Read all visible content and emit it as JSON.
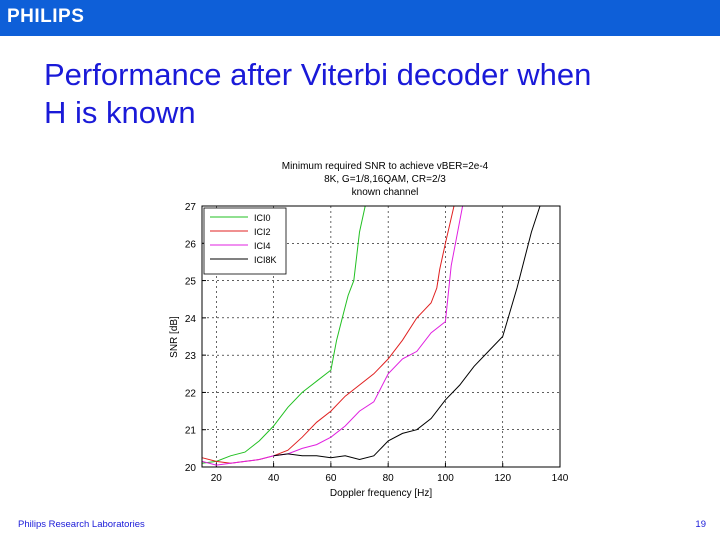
{
  "header": {
    "logo_text": "PHILIPS",
    "bar_color": "#0e5fd8"
  },
  "slide": {
    "title_line1": "Performance after Viterbi decoder when",
    "title_line2": "H is known",
    "title_color": "#1a1ad8"
  },
  "footer": {
    "left": "Philips Research Laboratories",
    "page_number": "19"
  },
  "chart_data": {
    "type": "line",
    "title_lines": [
      "Minimum required SNR to achieve vBER=2e-4",
      "8K, G=1/8,16QAM, CR=2/3",
      "known channel"
    ],
    "xlabel": "Doppler frequency [Hz]",
    "ylabel": "SNR [dB]",
    "xlim": [
      15,
      140
    ],
    "ylim": [
      20,
      27
    ],
    "xticks": [
      20,
      40,
      60,
      80,
      100,
      120,
      140
    ],
    "yticks": [
      20,
      21,
      22,
      23,
      24,
      25,
      26,
      27
    ],
    "grid": "dashed",
    "legend_position": "top-left",
    "series": [
      {
        "name": "ICI0",
        "color": "#22c022",
        "x": [
          15,
          20,
          25,
          30,
          35,
          40,
          45,
          50,
          55,
          60,
          62,
          64,
          66,
          68,
          70,
          72
        ],
        "y": [
          20.1,
          20.15,
          20.3,
          20.4,
          20.7,
          21.1,
          21.6,
          22.0,
          22.3,
          22.6,
          23.4,
          24.0,
          24.6,
          25.0,
          26.3,
          27.0
        ]
      },
      {
        "name": "ICI2",
        "color": "#e02020",
        "x": [
          15,
          20,
          25,
          30,
          35,
          40,
          45,
          50,
          55,
          60,
          65,
          70,
          75,
          80,
          85,
          90,
          95,
          97,
          98,
          100,
          103
        ],
        "y": [
          20.25,
          20.15,
          20.1,
          20.15,
          20.2,
          20.3,
          20.45,
          20.8,
          21.2,
          21.5,
          21.9,
          22.2,
          22.5,
          22.9,
          23.4,
          24.0,
          24.4,
          24.8,
          25.3,
          26.0,
          27.0
        ]
      },
      {
        "name": "ICI4",
        "color": "#e020e0",
        "x": [
          15,
          20,
          25,
          30,
          35,
          40,
          45,
          50,
          55,
          60,
          65,
          70,
          75,
          80,
          85,
          90,
          95,
          100,
          102,
          104,
          106
        ],
        "y": [
          20.15,
          20.05,
          20.1,
          20.15,
          20.2,
          20.3,
          20.35,
          20.5,
          20.6,
          20.8,
          21.1,
          21.5,
          21.75,
          22.5,
          22.9,
          23.1,
          23.6,
          23.9,
          25.4,
          26.2,
          27.0
        ]
      },
      {
        "name": "ICI8K",
        "color": "#000000",
        "x": [
          40,
          45,
          50,
          55,
          60,
          65,
          70,
          75,
          80,
          85,
          90,
          95,
          100,
          105,
          110,
          115,
          120,
          125,
          130,
          133
        ],
        "y": [
          20.3,
          20.35,
          20.3,
          20.3,
          20.25,
          20.3,
          20.2,
          20.3,
          20.7,
          20.9,
          21.0,
          21.3,
          21.8,
          22.2,
          22.7,
          23.1,
          23.5,
          24.8,
          26.3,
          27.0
        ]
      }
    ]
  }
}
